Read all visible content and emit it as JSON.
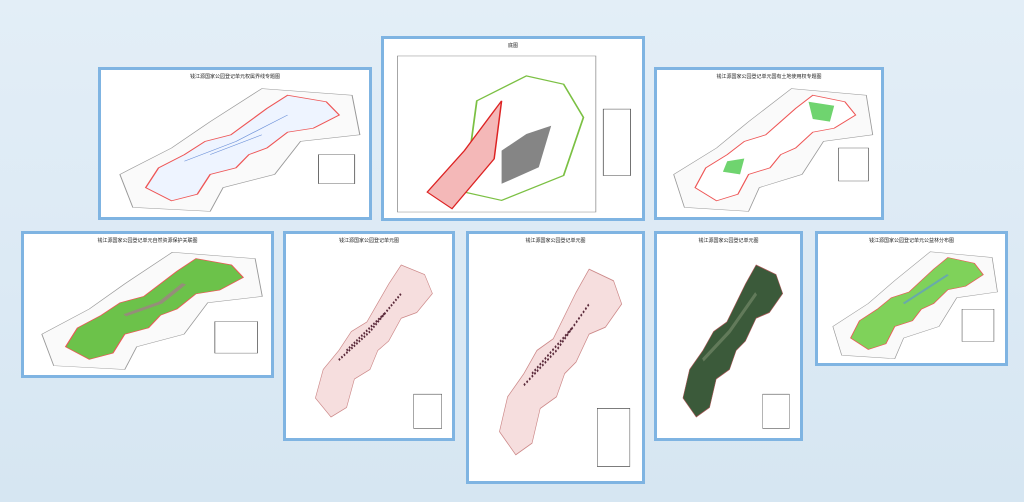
{
  "panels": [
    {
      "title": "钱江源国家公园登记单元权属界线专题图"
    },
    {
      "title": "底图"
    },
    {
      "title": "钱江源国家公园登记单元国有土地使用权专题图"
    },
    {
      "title": "钱江源国家公园登记单元自然资源保护关联图"
    },
    {
      "title": "钱江源国家公园登记单元图"
    },
    {
      "title": "钱江源国家公园登记单元图"
    },
    {
      "title": "钱江源国家公园登记单元图"
    },
    {
      "title": "钱江源国家公园登记单元公益林分布图"
    }
  ]
}
